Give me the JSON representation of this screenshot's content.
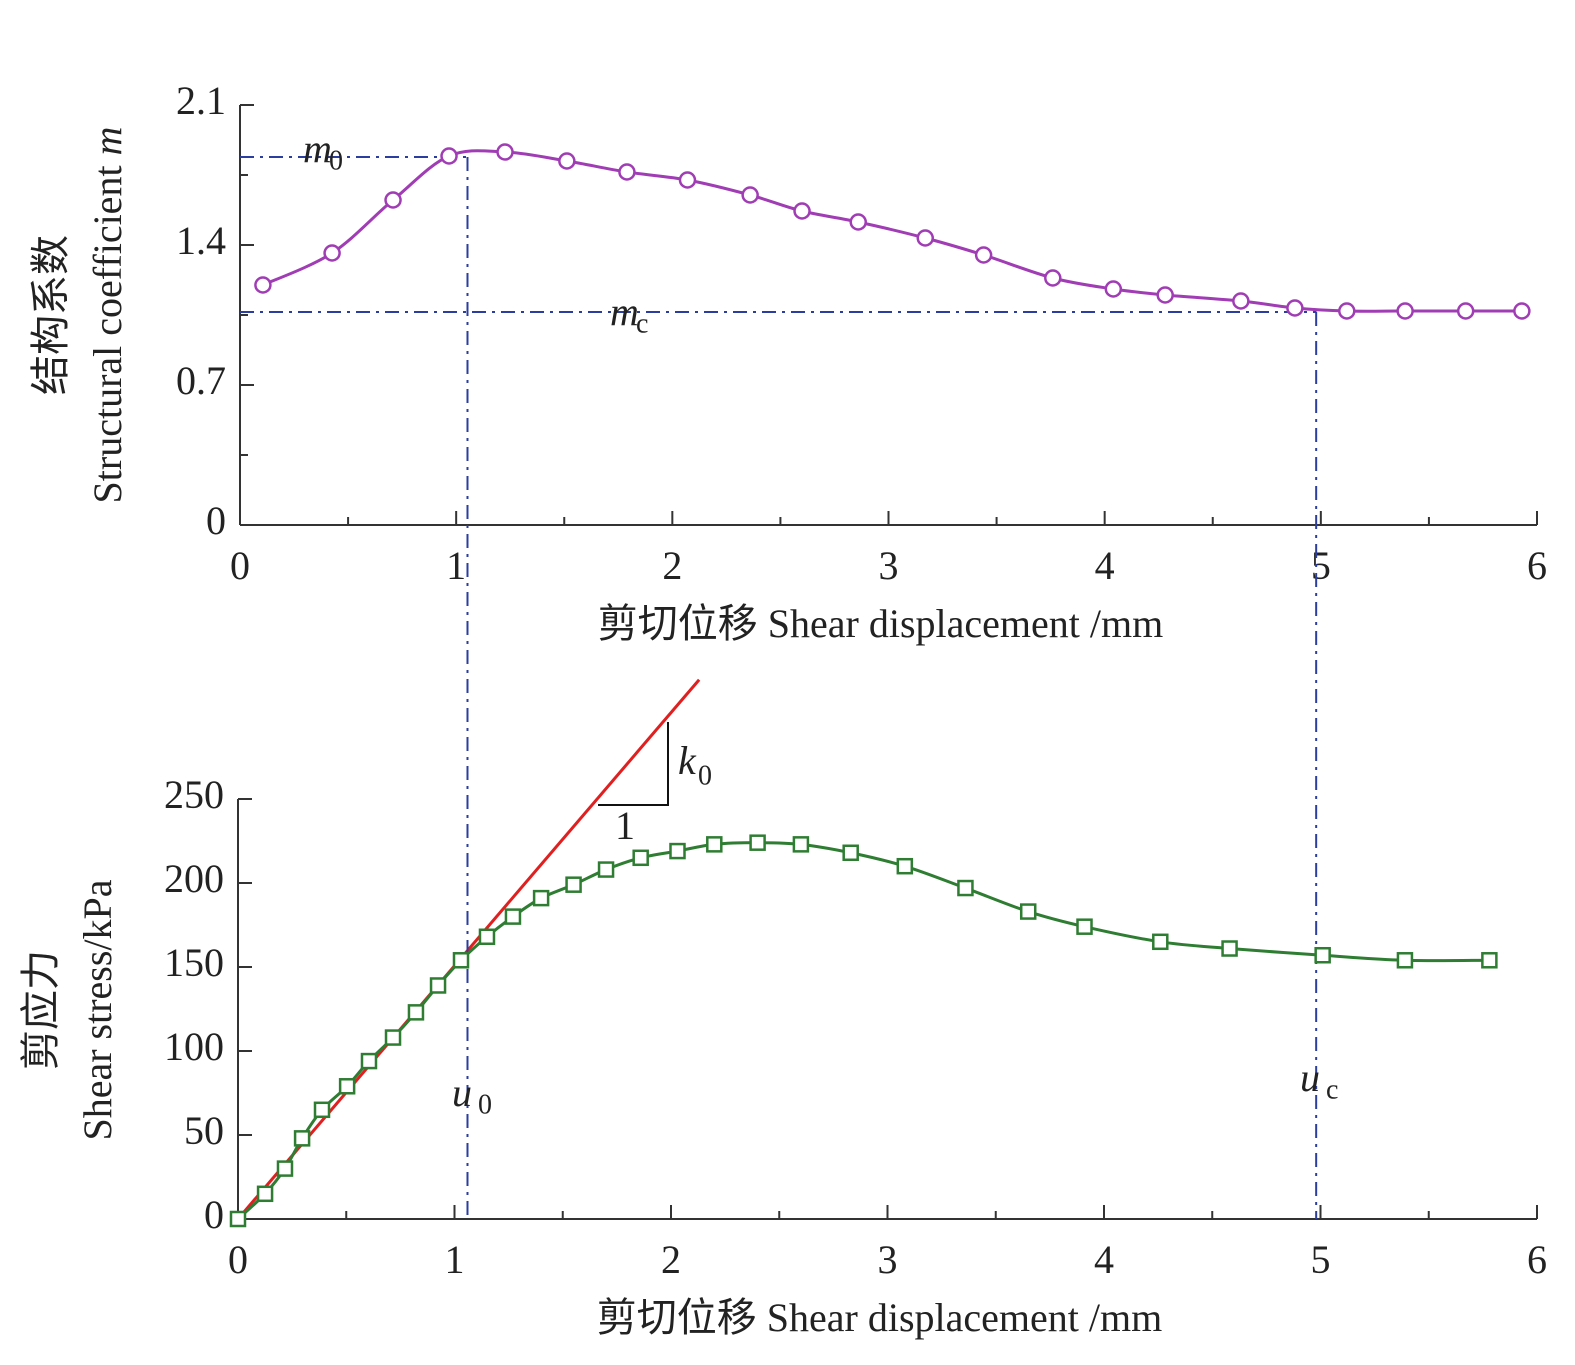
{
  "chart_data": [
    {
      "type": "line",
      "ylabel_zh": "结构系数",
      "ylabel_en": "Structural coefficient",
      "ylabel_symbol": "m",
      "xlabel": "剪切位移 Shear displacement /mm",
      "x": [
        0.106,
        0.426,
        0.708,
        0.967,
        1.226,
        1.512,
        1.79,
        2.07,
        2.36,
        2.6,
        2.86,
        3.17,
        3.44,
        3.76,
        4.04,
        4.28,
        4.63,
        4.88,
        5.12,
        5.39,
        5.67,
        5.93
      ],
      "series": [
        {
          "color": "#a03cb4",
          "marker": "circle",
          "values": [
            1.2,
            1.36,
            1.625,
            1.845,
            1.865,
            1.82,
            1.765,
            1.725,
            1.65,
            1.57,
            1.515,
            1.435,
            1.35,
            1.235,
            1.18,
            1.15,
            1.12,
            1.085,
            1.07,
            1.07,
            1.07,
            1.07
          ]
        }
      ],
      "xlim": [
        0,
        6
      ],
      "xticks": [
        0,
        1,
        2,
        3,
        4,
        5,
        6
      ],
      "xminorticks": [
        0.5,
        1.5,
        2.5,
        3.5,
        4.5,
        5.5
      ],
      "ylim": [
        0,
        2.1
      ],
      "yticks": [
        0,
        0.7,
        1.4,
        2.1
      ],
      "yminorticks": [
        0.35,
        1.05,
        1.75
      ],
      "hlines": [
        {
          "symbol": "m",
          "subscript": "0",
          "y": 1.84,
          "x_end": 1.06
        },
        {
          "symbol": "m",
          "subscript": "c",
          "y": 1.065,
          "x_end": 4.98
        }
      ]
    },
    {
      "type": "line",
      "ylabel_zh": "剪应力",
      "ylabel_en": "Shear stress/kPa",
      "xlabel": "剪切位移 Shear displacement /mm",
      "x": [
        0,
        0.125,
        0.217,
        0.296,
        0.388,
        0.504,
        0.605,
        0.716,
        0.822,
        0.924,
        1.03,
        1.15,
        1.27,
        1.4,
        1.55,
        1.7,
        1.86,
        2.03,
        2.2,
        2.4,
        2.6,
        2.83,
        3.08,
        3.36,
        3.65,
        3.91,
        4.26,
        4.58,
        5.01,
        5.39,
        5.78
      ],
      "series": [
        {
          "color": "#2e7d32",
          "marker": "square",
          "values": [
            0,
            15,
            30,
            48,
            65,
            79,
            94,
            108,
            123,
            139,
            154,
            168,
            180,
            191,
            199,
            208,
            215,
            219,
            223,
            224,
            223,
            218,
            210,
            197,
            183,
            174,
            165,
            161,
            157,
            154,
            154
          ]
        }
      ],
      "xlim": [
        0,
        6
      ],
      "xticks": [
        0,
        1,
        2,
        3,
        4,
        5,
        6
      ],
      "xminorticks": [
        0.5,
        1.5,
        2.5,
        3.5,
        4.5,
        5.5
      ],
      "ylim": [
        0,
        250
      ],
      "yticks": [
        0,
        50,
        100,
        150,
        200,
        250
      ],
      "tangent": {
        "color": "#e02020",
        "x": [
          0,
          2.13
        ],
        "y": [
          0,
          321
        ],
        "slope_symbol": "k",
        "slope_subscript": "0",
        "run_label": "1"
      },
      "vlines": [
        {
          "symbol": "u",
          "subscript": "0",
          "x": 1.06
        },
        {
          "symbol": "u",
          "subscript": "c",
          "x": 4.98
        }
      ]
    }
  ]
}
